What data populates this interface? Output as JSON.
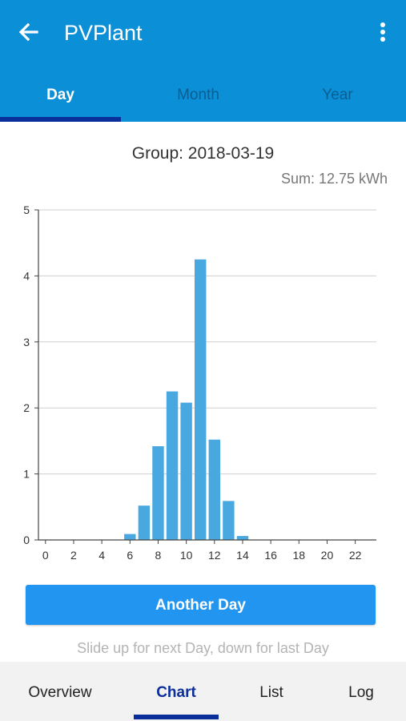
{
  "appbar": {
    "title": "PVPlant",
    "back_icon": "arrow-left-icon",
    "menu_icon": "more-vertical-icon"
  },
  "tabs": [
    {
      "label": "Day",
      "active": true
    },
    {
      "label": "Month",
      "active": false
    },
    {
      "label": "Year",
      "active": false
    }
  ],
  "header": {
    "group_title": "Group: 2018-03-19",
    "sum": "Sum: 12.75 kWh"
  },
  "chart_data": {
    "type": "bar",
    "x": [
      6,
      7,
      8,
      9,
      10,
      11,
      12,
      13,
      14
    ],
    "values": [
      0.09,
      0.52,
      1.42,
      2.25,
      2.08,
      4.25,
      1.52,
      0.59,
      0.06
    ],
    "xlim": [
      -0.5,
      23.5
    ],
    "ylim": [
      0,
      5
    ],
    "xticks": [
      0,
      2,
      4,
      6,
      8,
      10,
      12,
      14,
      16,
      18,
      20,
      22
    ],
    "yticks": [
      0,
      1,
      2,
      3,
      4,
      5
    ],
    "grid": true,
    "color": "#4aa8e0"
  },
  "actions": {
    "another_day_label": "Another Day"
  },
  "hint": "Slide up for next Day, down for last Day",
  "bottom_nav": [
    {
      "label": "Overview",
      "active": false
    },
    {
      "label": "Chart",
      "active": true
    },
    {
      "label": "List",
      "active": false
    },
    {
      "label": "Log",
      "active": false
    }
  ],
  "colors": {
    "primary": "#0b8fd6",
    "indicator": "#0b2f9a",
    "button": "#2195f0"
  }
}
